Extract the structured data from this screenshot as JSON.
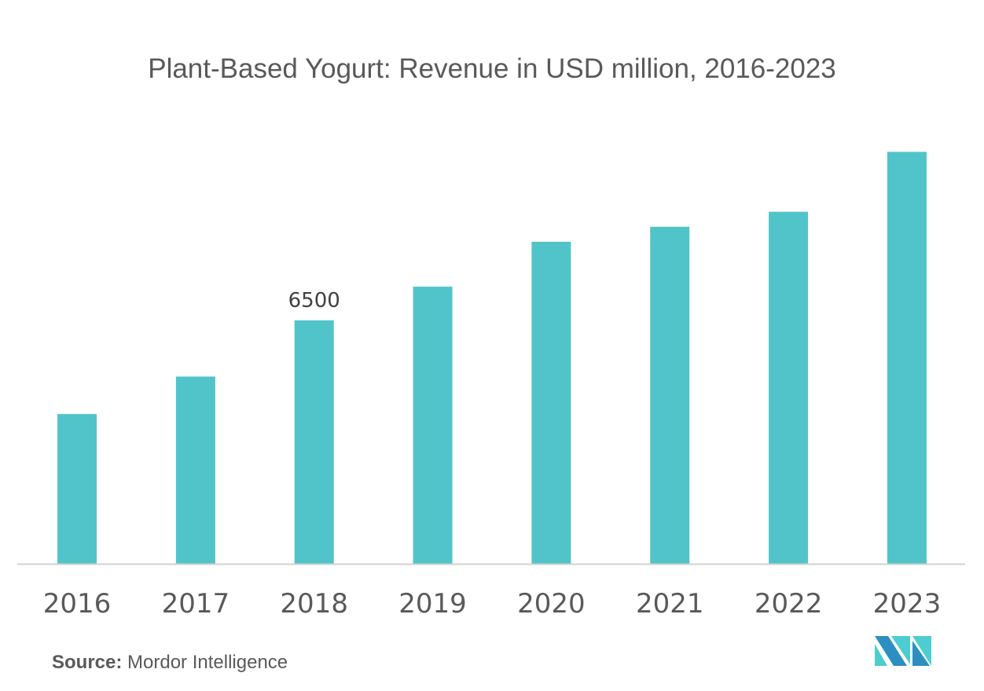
{
  "chart_data": {
    "type": "bar",
    "title": "Plant-Based Yogurt: Revenue in USD million, 2016-2023",
    "categories": [
      "2016",
      "2017",
      "2018",
      "2019",
      "2020",
      "2021",
      "2022",
      "2023"
    ],
    "values": [
      4000,
      5000,
      6500,
      7400,
      8600,
      9000,
      9400,
      11000
    ],
    "data_labels": [
      {
        "category": "2018",
        "text": "6500"
      }
    ],
    "xlabel": "",
    "ylabel": "",
    "ylim": [
      0,
      11000
    ],
    "grid": false,
    "bar_color": "#51c4c9"
  },
  "source": {
    "label": "Source:",
    "text": "Mordor Intelligence"
  },
  "logo": {
    "colors": [
      "#2d8fc1",
      "#4dcdd0"
    ]
  }
}
